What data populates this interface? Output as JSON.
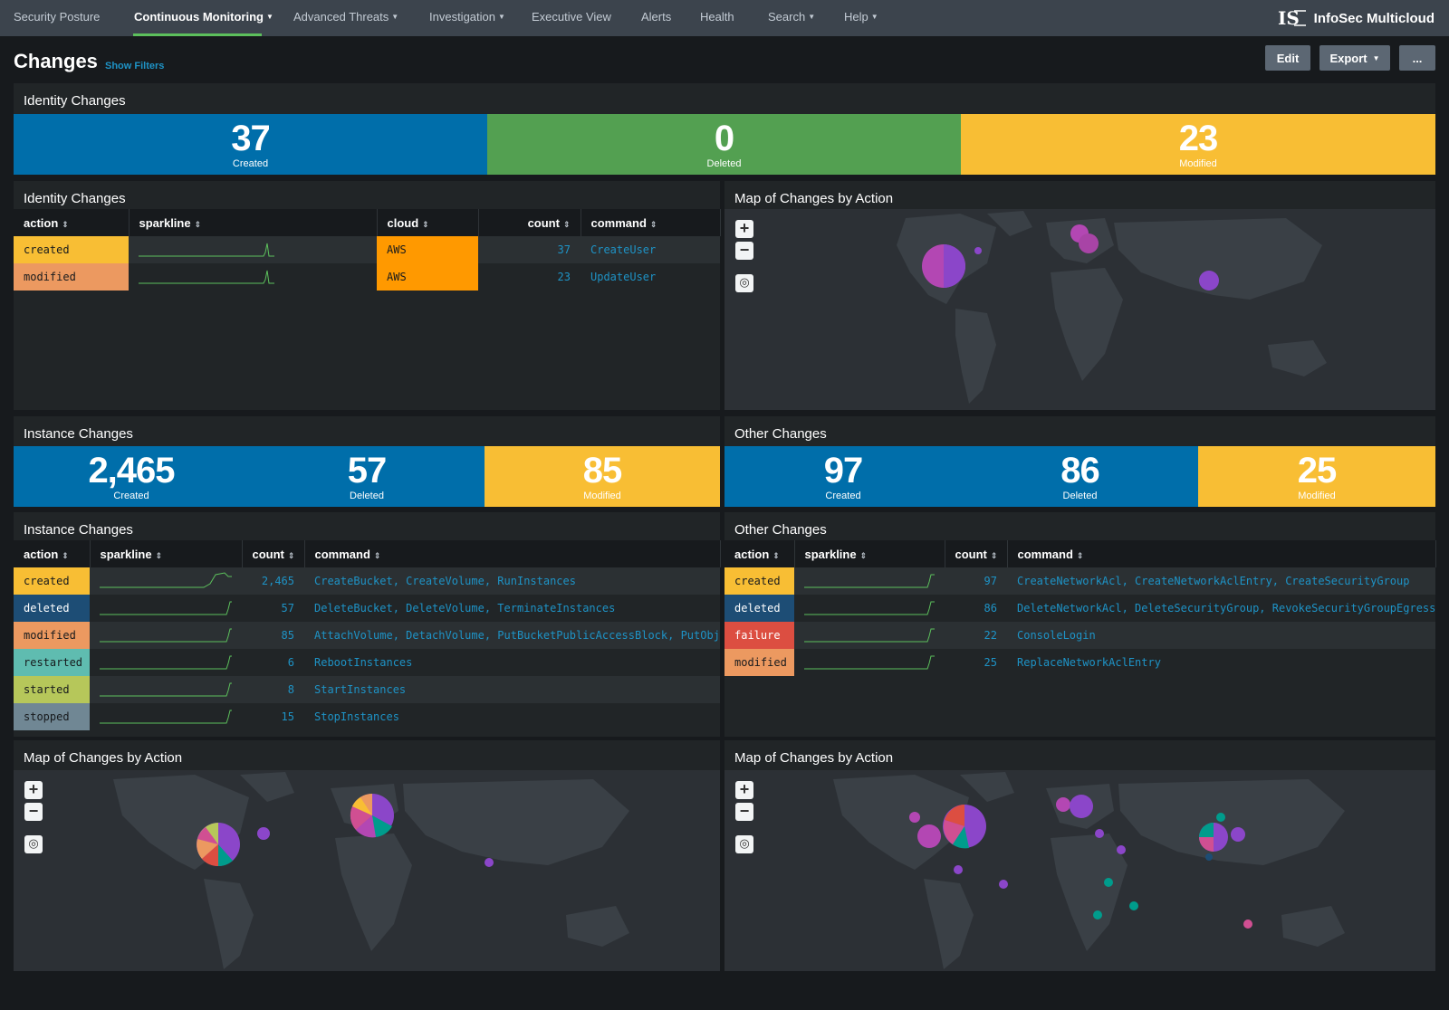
{
  "nav": {
    "items": [
      {
        "label": "Security Posture",
        "caret": false,
        "active": false
      },
      {
        "label": "Continuous Monitoring",
        "caret": true,
        "active": true
      },
      {
        "label": "Advanced Threats",
        "caret": true,
        "active": false
      },
      {
        "label": "Investigation",
        "caret": true,
        "active": false
      },
      {
        "label": "Executive View",
        "caret": false,
        "active": false
      },
      {
        "label": "Alerts",
        "caret": false,
        "active": false
      },
      {
        "label": "Health",
        "caret": false,
        "active": false
      },
      {
        "label": "Search",
        "caret": true,
        "active": false
      },
      {
        "label": "Help",
        "caret": true,
        "active": false
      }
    ],
    "brand": "InfoSec Multicloud",
    "logo_text": "IS"
  },
  "header": {
    "title": "Changes",
    "show_filters": "Show Filters",
    "edit_label": "Edit",
    "export_label": "Export",
    "more_label": "..."
  },
  "identity_singles": {
    "title": "Identity Changes",
    "created": {
      "value": "37",
      "label": "Created"
    },
    "deleted": {
      "value": "0",
      "label": "Deleted"
    },
    "modified": {
      "value": "23",
      "label": "Modified"
    }
  },
  "identity_table": {
    "title": "Identity Changes",
    "headers": {
      "action": "action",
      "sparkline": "sparkline",
      "cloud": "cloud",
      "count": "count",
      "command": "command"
    },
    "rows": [
      {
        "action": "created",
        "cloud": "AWS",
        "count": "37",
        "command": "CreateUser"
      },
      {
        "action": "modified",
        "cloud": "AWS",
        "count": "23",
        "command": "UpdateUser"
      }
    ]
  },
  "map_top_right": {
    "title": "Map of Changes by Action"
  },
  "instance_singles": {
    "title": "Instance Changes",
    "created": {
      "value": "2,465",
      "label": "Created"
    },
    "deleted": {
      "value": "57",
      "label": "Deleted"
    },
    "modified": {
      "value": "85",
      "label": "Modified"
    }
  },
  "other_singles": {
    "title": "Other Changes",
    "created": {
      "value": "97",
      "label": "Created"
    },
    "deleted": {
      "value": "86",
      "label": "Deleted"
    },
    "modified": {
      "value": "25",
      "label": "Modified"
    }
  },
  "instance_table": {
    "title": "Instance Changes",
    "headers": {
      "action": "action",
      "sparkline": "sparkline",
      "count": "count",
      "command": "command"
    },
    "rows": [
      {
        "action": "created",
        "count": "2,465",
        "command": "CreateBucket, CreateVolume, RunInstances"
      },
      {
        "action": "deleted",
        "count": "57",
        "command": "DeleteBucket, DeleteVolume, TerminateInstances"
      },
      {
        "action": "modified",
        "count": "85",
        "command": "AttachVolume, DetachVolume, PutBucketPublicAccessBlock, PutObject"
      },
      {
        "action": "restarted",
        "count": "6",
        "command": "RebootInstances"
      },
      {
        "action": "started",
        "count": "8",
        "command": "StartInstances"
      },
      {
        "action": "stopped",
        "count": "15",
        "command": "StopInstances"
      }
    ]
  },
  "other_table": {
    "title": "Other Changes",
    "headers": {
      "action": "action",
      "sparkline": "sparkline",
      "count": "count",
      "command": "command"
    },
    "rows": [
      {
        "action": "created",
        "count": "97",
        "command": "CreateNetworkAcl, CreateNetworkAclEntry, CreateSecurityGroup"
      },
      {
        "action": "deleted",
        "count": "86",
        "command": "DeleteNetworkAcl, DeleteSecurityGroup, RevokeSecurityGroupEgress, Rev"
      },
      {
        "action": "failure",
        "count": "22",
        "command": "ConsoleLogin"
      },
      {
        "action": "modified",
        "count": "25",
        "command": "ReplaceNetworkAclEntry"
      }
    ]
  },
  "map_bottom_left": {
    "title": "Map of Changes by Action"
  },
  "map_bottom_right": {
    "title": "Map of Changes by Action"
  },
  "map_controls": {
    "zoom_in": "+",
    "zoom_out": "−"
  },
  "colors": {
    "created": "#f8be34",
    "deleted": "#1d4d75",
    "modified": "#ec9960",
    "restarted": "#5fbcb0",
    "started": "#b6c75a",
    "stopped": "#708794",
    "failure": "#dc4e41",
    "cloud_aws": "#ff9900",
    "single_blue": "#006eaa",
    "single_green": "#53a051",
    "single_yellow": "#f8be34",
    "link": "#1e93c6",
    "sparkline": "#5cc05c",
    "nav_active_underline": "#5cc05c"
  }
}
